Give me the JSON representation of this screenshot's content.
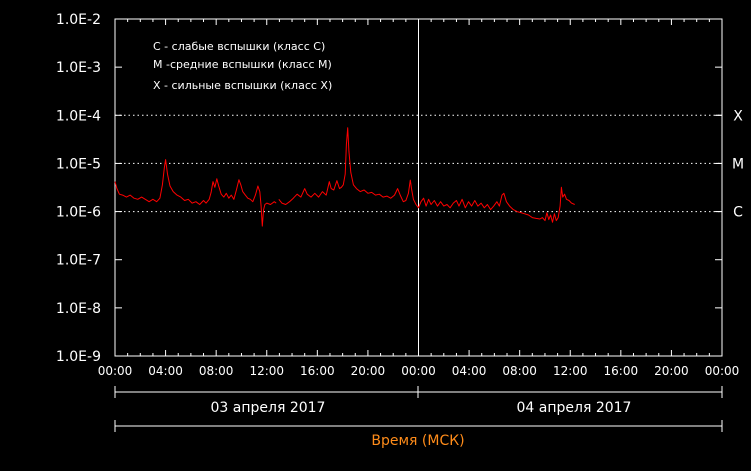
{
  "chart_data": {
    "type": "line",
    "y_scale": "log",
    "ylim": [
      1e-09,
      0.01
    ],
    "y_ticks": [
      {
        "value": 0.01,
        "label": "1.0E-2"
      },
      {
        "value": 0.001,
        "label": "1.0E-3"
      },
      {
        "value": 0.0001,
        "label": "1.0E-4"
      },
      {
        "value": 1e-05,
        "label": "1.0E-5"
      },
      {
        "value": 1e-06,
        "label": "1.0E-6"
      },
      {
        "value": 1e-07,
        "label": "1.0E-7"
      },
      {
        "value": 1e-08,
        "label": "1.0E-8"
      },
      {
        "value": 1e-09,
        "label": "1.0E-9"
      }
    ],
    "class_levels": [
      {
        "value": 0.0001,
        "label": "X"
      },
      {
        "value": 1e-05,
        "label": "M"
      },
      {
        "value": 1e-06,
        "label": "C"
      }
    ],
    "x_ticks": [
      "00:00",
      "04:00",
      "08:00",
      "12:00",
      "16:00",
      "20:00",
      "00:00",
      "04:00",
      "08:00",
      "12:00",
      "16:00",
      "20:00",
      "00:00"
    ],
    "x_range_hours": [
      0,
      48
    ],
    "day_labels": [
      "03 апреля 2017",
      "04 апреля 2017"
    ],
    "xlabel": "Время (МСК)",
    "legend": [
      "C - слабые вспышки (класс C)",
      "M -средние вспышки (класс M)",
      "X - сильные вспышки (класс X)"
    ],
    "grid": "dotted at class levels",
    "series": [
      {
        "color": "#ff0000",
        "points": [
          [
            0.0,
            4.2e-06
          ],
          [
            0.15,
            3e-06
          ],
          [
            0.35,
            2.3e-06
          ],
          [
            0.6,
            2.2e-06
          ],
          [
            0.9,
            2e-06
          ],
          [
            1.2,
            2.2e-06
          ],
          [
            1.5,
            1.9e-06
          ],
          [
            1.8,
            1.8e-06
          ],
          [
            2.1,
            2e-06
          ],
          [
            2.4,
            1.8e-06
          ],
          [
            2.7,
            1.6e-06
          ],
          [
            3.0,
            1.8e-06
          ],
          [
            3.3,
            1.6e-06
          ],
          [
            3.55,
            1.9e-06
          ],
          [
            3.75,
            3.6e-06
          ],
          [
            3.9,
            8e-06
          ],
          [
            4.0,
            1.2e-05
          ],
          [
            4.15,
            6e-06
          ],
          [
            4.35,
            3.4e-06
          ],
          [
            4.6,
            2.6e-06
          ],
          [
            4.9,
            2.2e-06
          ],
          [
            5.2,
            2e-06
          ],
          [
            5.5,
            1.7e-06
          ],
          [
            5.8,
            1.8e-06
          ],
          [
            6.1,
            1.5e-06
          ],
          [
            6.4,
            1.6e-06
          ],
          [
            6.7,
            1.4e-06
          ],
          [
            7.0,
            1.7e-06
          ],
          [
            7.2,
            1.5e-06
          ],
          [
            7.45,
            1.8e-06
          ],
          [
            7.6,
            2.5e-06
          ],
          [
            7.75,
            4.2e-06
          ],
          [
            7.9,
            3.2e-06
          ],
          [
            8.05,
            4.8e-06
          ],
          [
            8.2,
            3.4e-06
          ],
          [
            8.4,
            2.3e-06
          ],
          [
            8.6,
            2e-06
          ],
          [
            8.8,
            2.4e-06
          ],
          [
            9.0,
            1.9e-06
          ],
          [
            9.2,
            2.2e-06
          ],
          [
            9.4,
            1.8e-06
          ],
          [
            9.6,
            2.8e-06
          ],
          [
            9.8,
            4.6e-06
          ],
          [
            9.95,
            3.6e-06
          ],
          [
            10.1,
            2.6e-06
          ],
          [
            10.3,
            2.2e-06
          ],
          [
            10.5,
            1.9e-06
          ],
          [
            10.7,
            1.8e-06
          ],
          [
            10.9,
            1.6e-06
          ],
          [
            11.1,
            2.2e-06
          ],
          [
            11.3,
            3.4e-06
          ],
          [
            11.45,
            2.6e-06
          ],
          [
            11.55,
            1.3e-06
          ],
          [
            11.65,
            5e-07
          ],
          [
            11.75,
            1.1e-06
          ],
          [
            11.85,
            1.4e-06
          ],
          [
            12.0,
            1.5e-06
          ],
          [
            12.3,
            1.4e-06
          ],
          [
            12.6,
            1.6e-06
          ],
          [
            12.75,
            1.5e-06
          ],
          null,
          [
            12.95,
            1.8e-06
          ],
          [
            13.2,
            1.5e-06
          ],
          [
            13.5,
            1.4e-06
          ],
          [
            13.8,
            1.6e-06
          ],
          [
            14.1,
            1.9e-06
          ],
          [
            14.4,
            2.3e-06
          ],
          [
            14.7,
            2e-06
          ],
          [
            15.0,
            3e-06
          ],
          [
            15.2,
            2.3e-06
          ],
          [
            15.5,
            2e-06
          ],
          [
            15.8,
            2.4e-06
          ],
          [
            16.1,
            2e-06
          ],
          [
            16.4,
            2.6e-06
          ],
          [
            16.7,
            2.2e-06
          ],
          [
            16.95,
            4.2e-06
          ],
          [
            17.1,
            3e-06
          ],
          [
            17.3,
            2.8e-06
          ],
          [
            17.55,
            4.4e-06
          ],
          [
            17.75,
            3e-06
          ],
          [
            17.9,
            3.2e-06
          ],
          [
            18.05,
            3.6e-06
          ],
          [
            18.2,
            6e-06
          ],
          [
            18.3,
            2.5e-05
          ],
          [
            18.4,
            5.5e-05
          ],
          [
            18.5,
            1.8e-05
          ],
          [
            18.65,
            6.5e-06
          ],
          [
            18.85,
            3.6e-06
          ],
          [
            19.1,
            3e-06
          ],
          [
            19.4,
            2.6e-06
          ],
          [
            19.7,
            2.8e-06
          ],
          [
            20.0,
            2.4e-06
          ],
          [
            20.3,
            2.5e-06
          ],
          [
            20.6,
            2.2e-06
          ],
          [
            20.9,
            2.3e-06
          ],
          [
            21.2,
            2e-06
          ],
          [
            21.5,
            2.1e-06
          ],
          [
            21.8,
            1.9e-06
          ],
          [
            22.1,
            2.2e-06
          ],
          [
            22.35,
            3e-06
          ],
          [
            22.55,
            2.2e-06
          ],
          [
            22.8,
            1.6e-06
          ],
          [
            23.0,
            1.7e-06
          ],
          [
            23.2,
            2.4e-06
          ],
          [
            23.35,
            4.5e-06
          ],
          [
            23.45,
            3e-06
          ],
          [
            23.6,
            1.8e-06
          ],
          [
            23.8,
            1.4e-06
          ],
          [
            24.0,
            1.2e-06
          ],
          [
            24.2,
            1.6e-06
          ],
          [
            24.4,
            1.9e-06
          ],
          [
            24.6,
            1.3e-06
          ],
          [
            24.8,
            1.8e-06
          ],
          [
            25.0,
            1.4e-06
          ],
          [
            25.25,
            1.7e-06
          ],
          [
            25.5,
            1.3e-06
          ],
          [
            25.75,
            1.6e-06
          ],
          [
            26.0,
            1.3e-06
          ],
          [
            26.25,
            1.4e-06
          ],
          [
            26.5,
            1.2e-06
          ],
          [
            26.75,
            1.5e-06
          ],
          [
            27.0,
            1.7e-06
          ],
          [
            27.2,
            1.3e-06
          ],
          [
            27.45,
            1.8e-06
          ],
          [
            27.7,
            1.2e-06
          ],
          [
            27.95,
            1.6e-06
          ],
          [
            28.2,
            1.3e-06
          ],
          [
            28.45,
            1.7e-06
          ],
          [
            28.7,
            1.3e-06
          ],
          [
            28.95,
            1.5e-06
          ],
          [
            29.2,
            1.2e-06
          ],
          [
            29.45,
            1.4e-06
          ],
          [
            29.7,
            1.1e-06
          ],
          [
            29.95,
            1.3e-06
          ],
          [
            30.2,
            1.6e-06
          ],
          [
            30.4,
            1.3e-06
          ],
          [
            30.6,
            2.2e-06
          ],
          [
            30.75,
            2.4e-06
          ],
          [
            30.95,
            1.6e-06
          ],
          [
            31.2,
            1.3e-06
          ],
          [
            31.5,
            1.1e-06
          ],
          [
            31.8,
            1e-06
          ],
          [
            32.1,
            9.5e-07
          ],
          [
            32.4,
            9e-07
          ],
          [
            32.7,
            8.5e-07
          ],
          [
            33.0,
            7.5e-07
          ],
          [
            33.3,
            7.2e-07
          ],
          [
            33.6,
            7e-07
          ],
          [
            33.8,
            7.5e-07
          ],
          [
            34.0,
            6.5e-07
          ],
          [
            34.15,
            9.5e-07
          ],
          [
            34.3,
            6.8e-07
          ],
          [
            34.45,
            8.5e-07
          ],
          [
            34.6,
            6e-07
          ],
          [
            34.75,
            9e-07
          ],
          [
            34.9,
            6.5e-07
          ],
          [
            35.05,
            7.5e-07
          ],
          [
            35.2,
            1.3e-06
          ],
          [
            35.3,
            3.2e-06
          ],
          [
            35.4,
            2e-06
          ],
          [
            35.55,
            2.3e-06
          ],
          [
            35.7,
            1.8e-06
          ],
          [
            35.9,
            1.7e-06
          ],
          [
            36.1,
            1.5e-06
          ],
          [
            36.35,
            1.4e-06
          ]
        ]
      }
    ]
  }
}
